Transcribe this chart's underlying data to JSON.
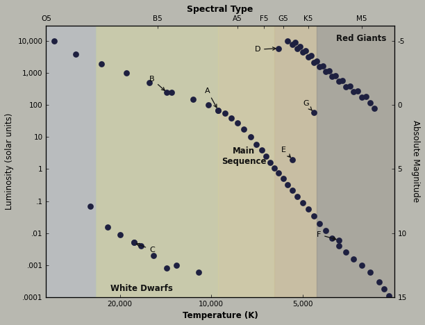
{
  "title": "Spectral Type",
  "xlabel": "Temperature (K)",
  "ylabel": "Luminosity (solar units)",
  "ylabel_right": "Absolute Magnitude",
  "spectral_types": [
    "O5",
    "B5",
    "A5",
    "F5",
    "G5",
    "K5",
    "M5"
  ],
  "spectral_temps": [
    35000,
    15000,
    8200,
    6700,
    5800,
    4800,
    3200
  ],
  "xlim": [
    35000,
    2500
  ],
  "ylim": [
    0.0001,
    30000
  ],
  "fig_bg": "#b8b8b0",
  "plot_bg": "#c8c4b0",
  "dot_color": "#1e2040",
  "dot_size": 40,
  "main_sequence_dots": [
    [
      33000,
      10000
    ],
    [
      28000,
      4000
    ],
    [
      23000,
      2000
    ],
    [
      19000,
      1000
    ],
    [
      16000,
      500
    ],
    [
      13500,
      250
    ],
    [
      11500,
      150
    ],
    [
      10200,
      100
    ],
    [
      9500,
      70
    ],
    [
      9000,
      55
    ],
    [
      8600,
      40
    ],
    [
      8200,
      28
    ],
    [
      7800,
      18
    ],
    [
      7400,
      10
    ],
    [
      7100,
      6
    ],
    [
      6800,
      4
    ],
    [
      6600,
      2.5
    ],
    [
      6400,
      1.6
    ],
    [
      6200,
      1.1
    ],
    [
      6000,
      0.75
    ],
    [
      5800,
      0.5
    ],
    [
      5600,
      0.33
    ],
    [
      5400,
      0.22
    ],
    [
      5200,
      0.14
    ],
    [
      5000,
      0.09
    ],
    [
      4800,
      0.055
    ],
    [
      4600,
      0.034
    ],
    [
      4400,
      0.02
    ],
    [
      4200,
      0.012
    ],
    [
      4000,
      0.007
    ],
    [
      3800,
      0.004
    ],
    [
      3600,
      0.0025
    ],
    [
      3400,
      0.0015
    ],
    [
      3200,
      0.001
    ],
    [
      3000,
      0.0006
    ],
    [
      2800,
      0.0003
    ],
    [
      2700,
      0.00018
    ],
    [
      2600,
      0.00011
    ]
  ],
  "red_giant_dots": [
    [
      5600,
      10000
    ],
    [
      5400,
      8000
    ],
    [
      5200,
      6000
    ],
    [
      5000,
      4500
    ],
    [
      4800,
      3200
    ],
    [
      4600,
      2200
    ],
    [
      4400,
      1600
    ],
    [
      4200,
      1100
    ],
    [
      4000,
      800
    ],
    [
      3800,
      550
    ],
    [
      3600,
      380
    ],
    [
      3400,
      270
    ],
    [
      3200,
      180
    ],
    [
      3000,
      120
    ],
    [
      2900,
      80
    ],
    [
      5300,
      9000
    ],
    [
      5100,
      6800
    ],
    [
      4900,
      5000
    ],
    [
      4700,
      3500
    ],
    [
      4500,
      2400
    ],
    [
      4300,
      1700
    ],
    [
      4100,
      1200
    ],
    [
      3900,
      850
    ],
    [
      3700,
      580
    ],
    [
      3500,
      400
    ],
    [
      3300,
      280
    ],
    [
      3100,
      190
    ]
  ],
  "white_dwarf_dots": [
    [
      25000,
      0.07
    ],
    [
      22000,
      0.015
    ],
    [
      20000,
      0.009
    ],
    [
      18000,
      0.005
    ],
    [
      17000,
      0.004
    ],
    [
      15500,
      0.002
    ],
    [
      14000,
      0.0008
    ],
    [
      13000,
      0.001
    ],
    [
      11000,
      0.0006
    ]
  ],
  "star_A": {
    "temp": 9500,
    "lum": 70,
    "label_temp": 10500,
    "label_lum": 280
  },
  "star_B": {
    "temp": 14000,
    "lum": 250,
    "label_temp": 16000,
    "label_lum": 650
  },
  "star_C": {
    "temp": 18000,
    "lum": 0.005,
    "label_temp": 16000,
    "label_lum": 0.003
  },
  "star_D": {
    "temp": 6000,
    "lum": 6000,
    "label_temp": 7200,
    "label_lum": 5500
  },
  "star_E": {
    "temp": 5400,
    "lum": 2.0,
    "label_temp": 5900,
    "label_lum": 4.0
  },
  "star_F": {
    "temp": 3800,
    "lum": 0.006,
    "label_temp": 4500,
    "label_lum": 0.009
  },
  "star_G": {
    "temp": 4600,
    "lum": 60,
    "label_temp": 5000,
    "label_lum": 110
  },
  "bg_bands": [
    {
      "xmin": 35000,
      "xmax": 24000,
      "color": "#b0b8c8",
      "alpha": 0.6
    },
    {
      "xmin": 24000,
      "xmax": 9500,
      "color": "#c8cfa8",
      "alpha": 0.5
    },
    {
      "xmin": 9500,
      "xmax": 6200,
      "color": "#d4cfa0",
      "alpha": 0.45
    },
    {
      "xmin": 6200,
      "xmax": 4500,
      "color": "#c8ba98",
      "alpha": 0.5
    },
    {
      "xmin": 4500,
      "xmax": 2500,
      "color": "#909090",
      "alpha": 0.55
    }
  ],
  "abs_mag_positions": [
    {
      "mag": "-5",
      "lum": 10000
    },
    {
      "mag": "0",
      "lum": 100
    },
    {
      "mag": "5",
      "lum": 1.0
    },
    {
      "mag": "10",
      "lum": 0.01
    },
    {
      "mag": "15",
      "lum": 0.0001
    }
  ]
}
